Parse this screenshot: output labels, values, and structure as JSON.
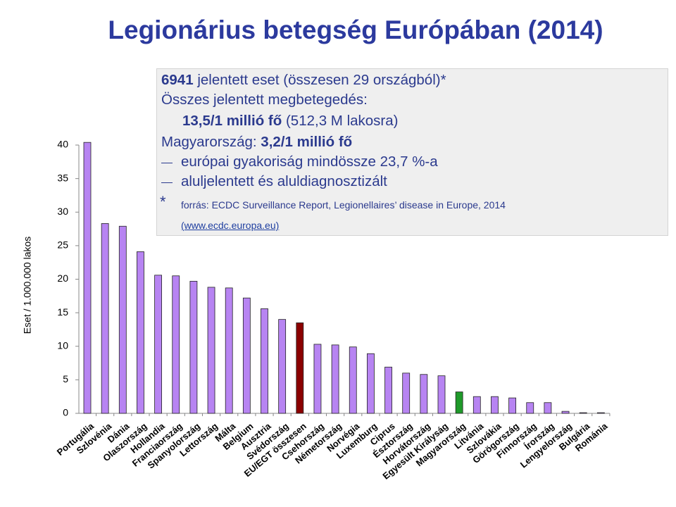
{
  "chart_data": {
    "type": "bar",
    "title": "Legionárius betegség Európában (2014)",
    "y_label": "Eset / 1.000.000 lakos",
    "categories": [
      "Portugália",
      "Szlovénia",
      "Dánia",
      "Olaszország",
      "Hollandia",
      "Franciaország",
      "Spanyolország",
      "Lettország",
      "Málta",
      "Belgium",
      "Ausztria",
      "Svédország",
      "EU/EGT összesen",
      "Csehország",
      "Németország",
      "Norvégia",
      "Luxemburg",
      "Ciprus",
      "Észtország",
      "Horvátország",
      "Egyesült Királyság",
      "Magyarország",
      "Litvánia",
      "Szlovákia",
      "Görögország",
      "Finnország",
      "Írország",
      "Lengyelország",
      "Bulgária",
      "Románia"
    ],
    "values": [
      40.4,
      28.3,
      27.9,
      24.1,
      20.6,
      20.5,
      19.7,
      18.8,
      18.7,
      17.2,
      15.6,
      14.0,
      13.5,
      10.3,
      10.2,
      9.9,
      8.9,
      6.9,
      6.0,
      5.8,
      5.6,
      3.2,
      2.5,
      2.5,
      2.3,
      1.6,
      1.6,
      0.3,
      0.1,
      0.1
    ],
    "colors": [
      "#b784f2",
      "#b784f2",
      "#b784f2",
      "#b784f2",
      "#b784f2",
      "#b784f2",
      "#b784f2",
      "#b784f2",
      "#b784f2",
      "#b784f2",
      "#b784f2",
      "#b784f2",
      "#8b0000",
      "#b784f2",
      "#b784f2",
      "#b784f2",
      "#b784f2",
      "#b784f2",
      "#b784f2",
      "#b784f2",
      "#b784f2",
      "#1f9a2a",
      "#b784f2",
      "#b784f2",
      "#b784f2",
      "#b784f2",
      "#b784f2",
      "#b784f2",
      "#b784f2",
      "#b784f2"
    ],
    "ylim": [
      0,
      40
    ],
    "yticks": [
      0,
      5,
      10,
      15,
      20,
      25,
      30,
      35,
      40
    ],
    "grid": false,
    "annotation": {
      "line1_bold": "6941",
      "line1": "jelentett eset (összesen 29 országból)*",
      "line2": "Összes jelentett megbetegedés:",
      "line3_bold": "13,5/1 millió fő",
      "line3": "(512,3 M lakosra)",
      "line4": "Magyarország:",
      "line4_bold": "3,2/1 millió fő",
      "dash1": "európai gyakoriság mindössze 23,7 %-a",
      "dash2": "aluljelentett és aluldiagnosztizált",
      "note_marker": "*",
      "source": "forrás: ECDC Surveillance Report, Legionellaires’ disease in Europe, 2014",
      "link": "(www.ecdc.europa.eu)"
    }
  }
}
